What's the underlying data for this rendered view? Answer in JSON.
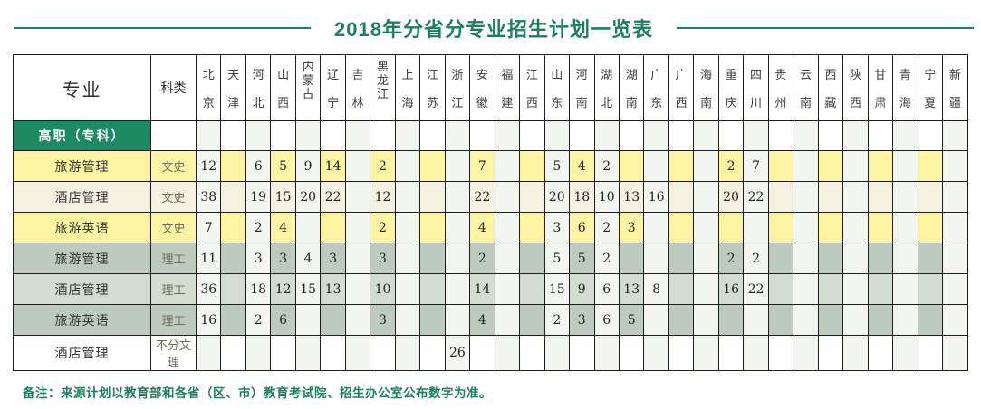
{
  "title": "2018年分省分专业招生计划一览表",
  "note": "备注：来源计划以教育部和各省（区、市）教育考试院、招生办公室公布数字为准。",
  "colors": {
    "accent_green": "#1c7f5d",
    "section_row_green": "#1d8a64",
    "row_yellow": "#fcf4a2",
    "row_cream": "#f5f1e1",
    "row_green_dark": "#bccbbd",
    "row_green_light": "#d3dcd1",
    "stripe_light": "#f3f5f1",
    "header_stripe": "#efefec",
    "grid_border": "#1d1d1b"
  },
  "table": {
    "major_header": "专业",
    "category_header": "科类",
    "provinces": [
      "北京",
      "天津",
      "河北",
      "山西",
      "内蒙古",
      "辽宁",
      "吉林",
      "黑龙江",
      "上海",
      "江苏",
      "浙江",
      "安徽",
      "福建",
      "江西",
      "山东",
      "河南",
      "湖北",
      "湖南",
      "广东",
      "广西",
      "海南",
      "重庆",
      "四川",
      "贵州",
      "云南",
      "西藏",
      "陕西",
      "甘肃",
      "青海",
      "宁夏",
      "新疆"
    ],
    "section_label": "高职（专科）",
    "rows": [
      {
        "major": "旅游管理",
        "category": "文史",
        "style": "yellow",
        "values": [
          "12",
          "",
          "6",
          "5",
          "9",
          "14",
          "",
          "2",
          "",
          "",
          "",
          "7",
          "",
          "",
          "5",
          "4",
          "2",
          "",
          "",
          "",
          "",
          "2",
          "7",
          "",
          "",
          "",
          "",
          "",
          "",
          "",
          ""
        ]
      },
      {
        "major": "酒店管理",
        "category": "文史",
        "style": "cream",
        "values": [
          "38",
          "",
          "19",
          "15",
          "20",
          "22",
          "",
          "12",
          "",
          "",
          "",
          "22",
          "",
          "",
          "20",
          "18",
          "10",
          "13",
          "16",
          "",
          "",
          "20",
          "22",
          "",
          "",
          "",
          "",
          "",
          "",
          "",
          ""
        ]
      },
      {
        "major": "旅游英语",
        "category": "文史",
        "style": "yellow",
        "values": [
          "7",
          "",
          "2",
          "4",
          "",
          "",
          "",
          "2",
          "",
          "",
          "",
          "4",
          "",
          "",
          "3",
          "6",
          "2",
          "3",
          "",
          "",
          "",
          "",
          "",
          "",
          "",
          "",
          "",
          "",
          "",
          "",
          ""
        ]
      },
      {
        "major": "旅游管理",
        "category": "理工",
        "style": "gdark",
        "values": [
          "11",
          "",
          "3",
          "3",
          "4",
          "3",
          "",
          "3",
          "",
          "",
          "",
          "2",
          "",
          "",
          "5",
          "5",
          "2",
          "",
          "",
          "",
          "",
          "2",
          "2",
          "",
          "",
          "",
          "",
          "",
          "",
          "",
          ""
        ]
      },
      {
        "major": "酒店管理",
        "category": "理工",
        "style": "glight",
        "values": [
          "36",
          "",
          "18",
          "12",
          "15",
          "13",
          "",
          "10",
          "",
          "",
          "",
          "14",
          "",
          "",
          "15",
          "9",
          "6",
          "13",
          "8",
          "",
          "",
          "16",
          "22",
          "",
          "",
          "",
          "",
          "",
          "",
          "",
          ""
        ]
      },
      {
        "major": "旅游英语",
        "category": "理工",
        "style": "gdark",
        "values": [
          "16",
          "",
          "2",
          "6",
          "",
          "",
          "",
          "3",
          "",
          "",
          "",
          "4",
          "",
          "",
          "2",
          "3",
          "6",
          "5",
          "",
          "",
          "",
          "",
          "",
          "",
          "",
          "",
          "",
          "",
          "",
          "",
          ""
        ]
      },
      {
        "major": "酒店管理",
        "category": "不分文理",
        "style": "white",
        "values": [
          "",
          "",
          "",
          "",
          "",
          "",
          "",
          "",
          "",
          "",
          "26",
          "",
          "",
          "",
          "",
          "",
          "",
          "",
          "",
          "",
          "",
          "",
          "",
          "",
          "",
          "",
          "",
          "",
          "",
          "",
          ""
        ]
      }
    ]
  }
}
